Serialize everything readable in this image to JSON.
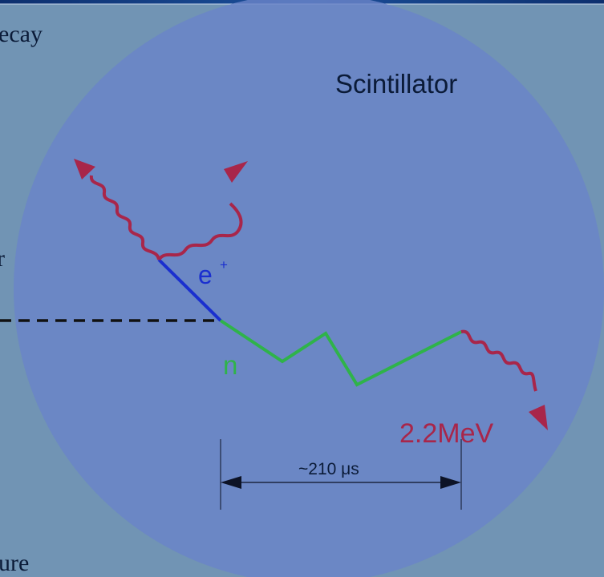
{
  "background_text": {
    "top": "ecay",
    "middle": "r",
    "bottom": "ure"
  },
  "diagram": {
    "region_label": "Scintillator",
    "positron_label": "e",
    "positron_charge": "+",
    "neutron_label": "n",
    "gamma_energy_label": "2.2MeV",
    "capture_time_label": "~210 μs"
  },
  "colors": {
    "scintillator_fill": "#6a84c8",
    "positron": "#1a2fcf",
    "neutron": "#2fb34a",
    "gamma": "#a8264a",
    "text_dark": "#0b1b38"
  }
}
